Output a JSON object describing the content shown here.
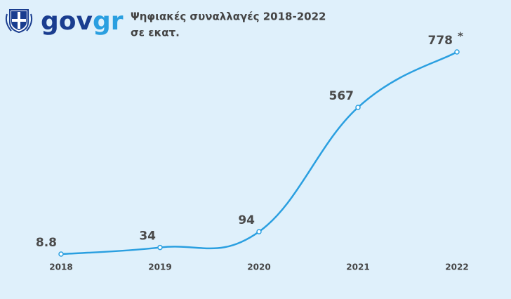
{
  "logo": {
    "part1": "gov",
    "part2": "gr"
  },
  "chart_data": {
    "type": "line",
    "title": "Ψηφιακές συναλλαγές 2018-2022",
    "subtitle": "σε εκατ.",
    "categories": [
      "2018",
      "2019",
      "2020",
      "2021",
      "2022"
    ],
    "values": [
      8.8,
      34,
      94,
      567,
      778
    ],
    "color": "#2a9fe0",
    "annotation": "*"
  }
}
